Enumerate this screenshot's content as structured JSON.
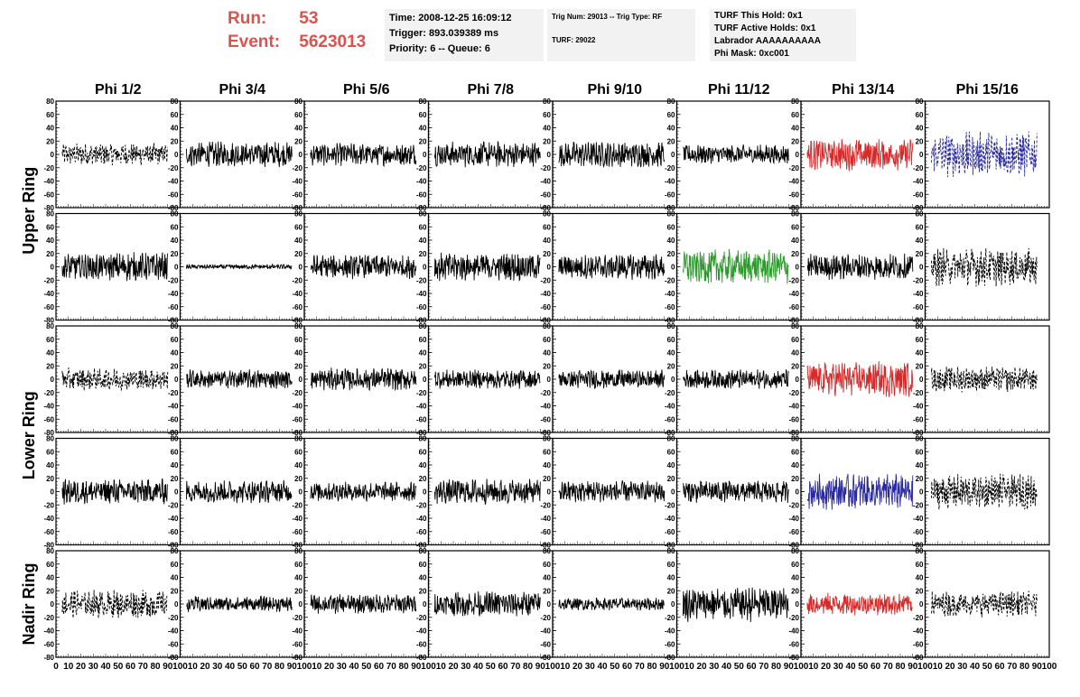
{
  "header": {
    "run_label": "Run:",
    "run_value": "53",
    "event_label": "Event:",
    "event_value": "5623013",
    "run_color": "#d9534f"
  },
  "info1": {
    "time": "Time: 2008-12-25 16:09:12",
    "trigger": "Trigger: 893.039389 ms",
    "priority": "Priority: 6 -- Queue: 6"
  },
  "info2": {
    "trig": "Trig Num: 29013 -- Trig Type: RF",
    "turf": "TURF: 29022"
  },
  "info3": {
    "this_hold": "TURF This Hold: 0x1",
    "active_holds": "TURF Active Holds: 0x1",
    "labrador": "Labrador AAAAAAAAAA",
    "phi_mask": "Phi Mask: 0xc001"
  },
  "chart_data": {
    "type": "line",
    "columns": [
      "Phi 1/2",
      "Phi 3/4",
      "Phi 5/6",
      "Phi 7/8",
      "Phi 9/10",
      "Phi 11/12",
      "Phi 13/14",
      "Phi 15/16"
    ],
    "row_groups": [
      {
        "label": "Upper Ring",
        "rows": [
          0,
          1
        ]
      },
      {
        "label": "Lower Ring",
        "rows": [
          2,
          3
        ]
      },
      {
        "label": "Nadir Ring",
        "rows": [
          4
        ]
      }
    ],
    "ylim": [
      -80,
      80
    ],
    "xlim": [
      0,
      100
    ],
    "y_ticks": [
      -80,
      -60,
      -40,
      -20,
      0,
      20,
      40,
      60,
      80
    ],
    "x_ticks": [
      0,
      10,
      20,
      30,
      40,
      50,
      60,
      70,
      80,
      90,
      100
    ],
    "colors": {
      "black": "#000000",
      "red": "#d42a2a",
      "green": "#2a9a2a",
      "blue": "#2a2a9a"
    },
    "panels": [
      [
        "dash",
        "black",
        14
      ],
      [
        "solid",
        "black",
        16
      ],
      [
        "solid",
        "black",
        14
      ],
      [
        "solid",
        "black",
        16
      ],
      [
        "solid",
        "black",
        16
      ],
      [
        "solid",
        "black",
        12
      ],
      [
        "solid",
        "red",
        20
      ],
      [
        "dash",
        "blue",
        28
      ],
      [
        "solid",
        "black",
        18
      ],
      [
        "solid",
        "black",
        3
      ],
      [
        "solid",
        "black",
        15
      ],
      [
        "solid",
        "black",
        18
      ],
      [
        "solid",
        "black",
        16
      ],
      [
        "solid",
        "green",
        22
      ],
      [
        "solid",
        "black",
        16
      ],
      [
        "dash",
        "black",
        24
      ],
      [
        "dash",
        "black",
        14
      ],
      [
        "solid",
        "black",
        12
      ],
      [
        "solid",
        "black",
        14
      ],
      [
        "solid",
        "black",
        12
      ],
      [
        "solid",
        "black",
        12
      ],
      [
        "solid",
        "black",
        12
      ],
      [
        "solid",
        "red",
        22
      ],
      [
        "dash",
        "black",
        16
      ],
      [
        "solid",
        "black",
        16
      ],
      [
        "solid",
        "black",
        14
      ],
      [
        "solid",
        "black",
        12
      ],
      [
        "solid",
        "black",
        16
      ],
      [
        "solid",
        "black",
        14
      ],
      [
        "solid",
        "black",
        14
      ],
      [
        "solid",
        "blue",
        22
      ],
      [
        "dash",
        "black",
        22
      ],
      [
        "dash",
        "black",
        18
      ],
      [
        "solid",
        "black",
        10
      ],
      [
        "solid",
        "black",
        12
      ],
      [
        "solid",
        "black",
        16
      ],
      [
        "solid",
        "black",
        8
      ],
      [
        "solid",
        "black",
        22
      ],
      [
        "solid",
        "red",
        14
      ],
      [
        "dash",
        "black",
        16
      ]
    ]
  }
}
